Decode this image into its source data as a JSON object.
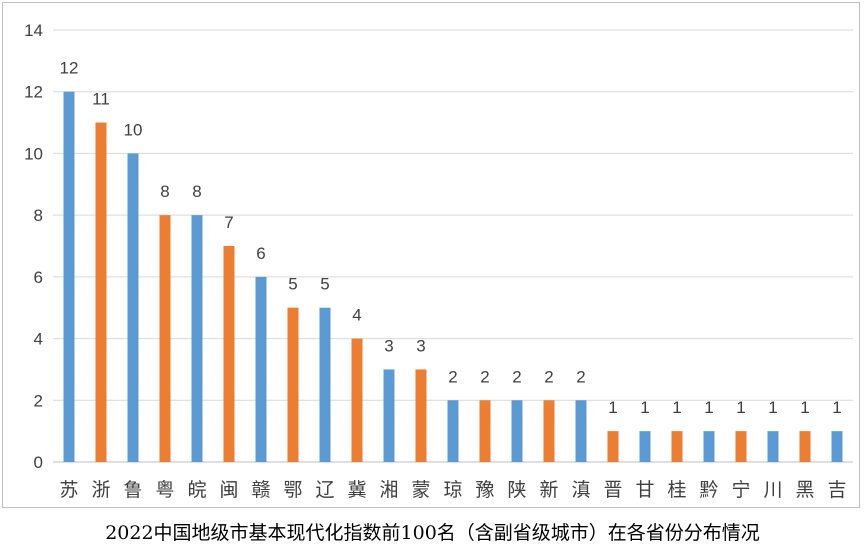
{
  "chart_data": {
    "type": "bar",
    "title": "",
    "xlabel": "",
    "ylabel": "",
    "ylim": [
      0,
      14
    ],
    "yticks": [
      0,
      2,
      4,
      6,
      8,
      10,
      12,
      14
    ],
    "grid": true,
    "categories": [
      "苏",
      "浙",
      "鲁",
      "粤",
      "皖",
      "闽",
      "赣",
      "鄂",
      "辽",
      "冀",
      "湘",
      "蒙",
      "琼",
      "豫",
      "陕",
      "新",
      "滇",
      "晋",
      "甘",
      "桂",
      "黔",
      "宁",
      "川",
      "黑",
      "吉"
    ],
    "values": [
      12,
      11,
      10,
      8,
      8,
      7,
      6,
      5,
      5,
      4,
      3,
      3,
      2,
      2,
      2,
      2,
      2,
      1,
      1,
      1,
      1,
      1,
      1,
      1,
      1
    ],
    "colors": {
      "blue": "#5b9bd5",
      "orange": "#ed7d31"
    },
    "bar_colors": [
      "blue",
      "orange",
      "blue",
      "orange",
      "blue",
      "orange",
      "blue",
      "orange",
      "blue",
      "orange",
      "blue",
      "orange",
      "blue",
      "orange",
      "blue",
      "orange",
      "blue",
      "orange",
      "blue",
      "orange",
      "blue",
      "orange",
      "blue",
      "orange",
      "blue"
    ]
  },
  "caption": "2022中国地级市基本现代化指数前100名（含副省级城市）在各省份分布情况"
}
